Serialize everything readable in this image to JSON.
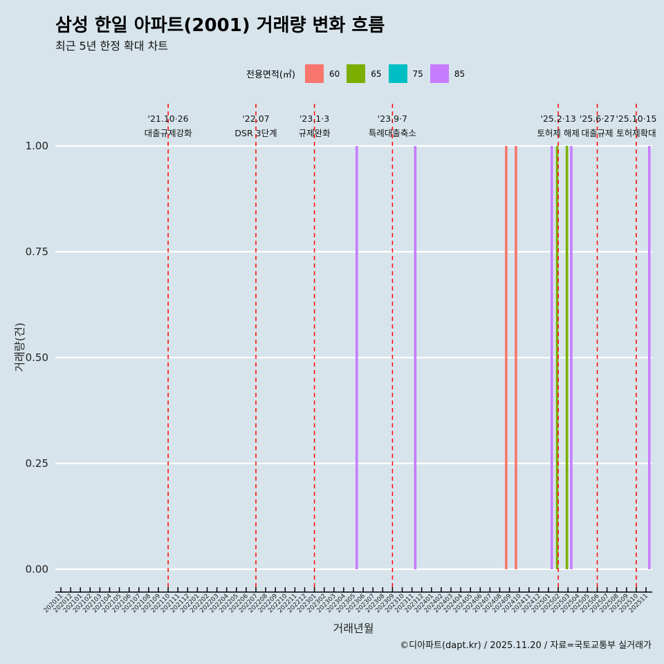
{
  "title": "삼성 한일 아파트(2001) 거래량 변화 흐름",
  "subtitle": "최근 5년 한정 확대 차트",
  "caption": "©디아파트(dapt.kr) / 2025.11.20 / 자료=국토교통부 실거래가",
  "chart_data": {
    "type": "bar",
    "xlabel": "거래년월",
    "ylabel": "거래량(건)",
    "ylim": [
      0,
      1
    ],
    "yticks": [
      "0.00",
      "0.25",
      "0.50",
      "0.75",
      "1.00"
    ],
    "legend_title": "전용면적(㎡)",
    "legend_placement": "top",
    "legend": [
      {
        "name": "60",
        "color": "#f8766d"
      },
      {
        "name": "65",
        "color": "#7cae00"
      },
      {
        "name": "75",
        "color": "#00bfc4"
      },
      {
        "name": "85",
        "color": "#c77cff"
      }
    ],
    "categories": [
      "202011",
      "202012",
      "202101",
      "202102",
      "202103",
      "202104",
      "202105",
      "202106",
      "202107",
      "202108",
      "202109",
      "202110",
      "202111",
      "202112",
      "202201",
      "202202",
      "202203",
      "202204",
      "202205",
      "202206",
      "202207",
      "202208",
      "202209",
      "202210",
      "202211",
      "202212",
      "202301",
      "202302",
      "202303",
      "202304",
      "202305",
      "202306",
      "202307",
      "202308",
      "202309",
      "202310",
      "202311",
      "202312",
      "202401",
      "202402",
      "202403",
      "202404",
      "202405",
      "202406",
      "202407",
      "202408",
      "202409",
      "202410",
      "202411",
      "202412",
      "202501",
      "202502",
      "202503",
      "202504",
      "202505",
      "202506",
      "202507",
      "202508",
      "202509",
      "202510",
      "202511"
    ],
    "bars": [
      {
        "month": "202305",
        "area": "85",
        "value": 1
      },
      {
        "month": "202311",
        "area": "85",
        "value": 1
      },
      {
        "month": "202409",
        "area": "60",
        "value": 1
      },
      {
        "month": "202410",
        "area": "60",
        "value": 1
      },
      {
        "month": "202501",
        "area": "85",
        "value": 1
      },
      {
        "month": "202502",
        "area": "65",
        "value": 1
      },
      {
        "month": "202503",
        "area": "65",
        "value": 1
      },
      {
        "month": "202503",
        "area": "85",
        "value": 1
      },
      {
        "month": "202511",
        "area": "85",
        "value": 1
      }
    ],
    "events": [
      {
        "month": "202110",
        "date": "'21.10·26",
        "label": "대출규제강화"
      },
      {
        "month": "202207",
        "date": "'22.07",
        "label": "DSR 3단계"
      },
      {
        "month": "202301",
        "date": "'23.1·3",
        "label": "규제완화"
      },
      {
        "month": "202309",
        "date": "'23.9·7",
        "label": "특례대출축소"
      },
      {
        "month": "202502",
        "date": "'25.2·13",
        "label": "토허제 해제"
      },
      {
        "month": "202506",
        "date": "'25.6·27",
        "label": "대출규제"
      },
      {
        "month": "202510",
        "date": "'25.10·15",
        "label": "토허제확대"
      }
    ]
  }
}
